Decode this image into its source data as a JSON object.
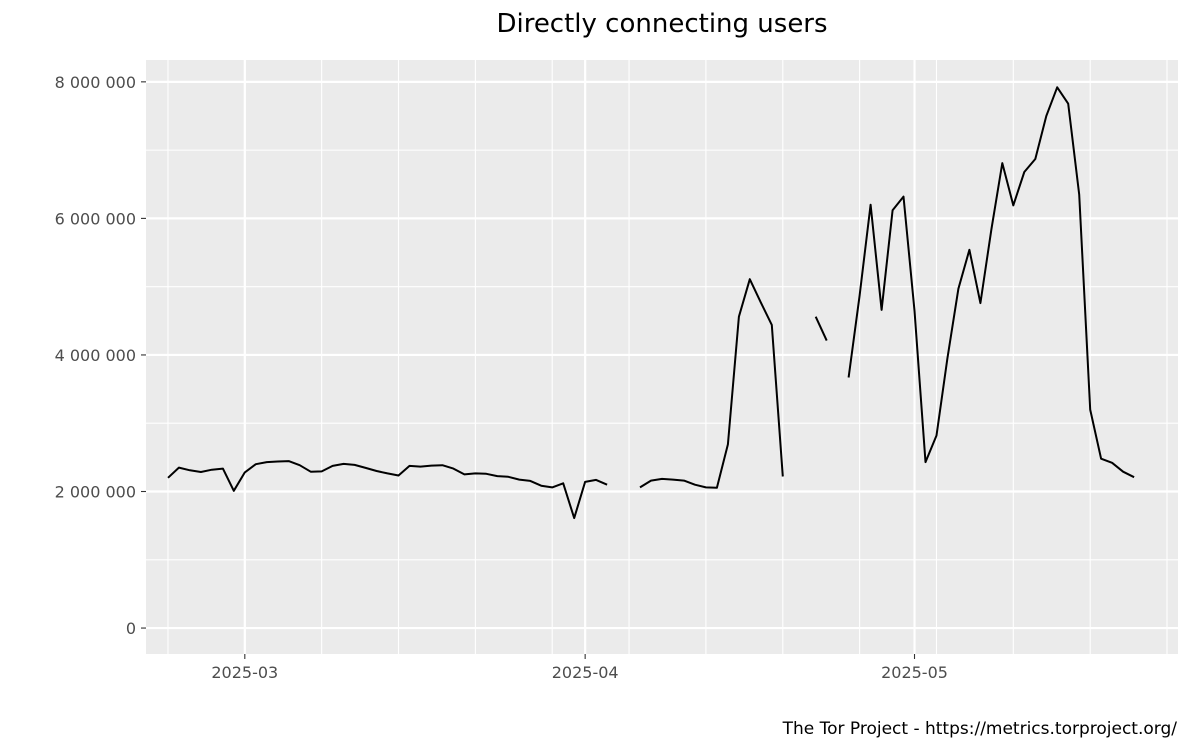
{
  "chart_data": {
    "type": "line",
    "title": "Directly connecting users",
    "caption": "The Tor Project - https://metrics.torproject.org/",
    "xlabel": "",
    "ylabel": "",
    "x_tick_labels": [
      "2025-03",
      "2025-04",
      "2025-05"
    ],
    "x_tick_dates": [
      "2025-03-01",
      "2025-04-01",
      "2025-05-01"
    ],
    "y_tick_labels": [
      "0",
      "2 000 000",
      "4 000 000",
      "6 000 000",
      "8 000 000"
    ],
    "y_tick_values": [
      0,
      2000000,
      4000000,
      6000000,
      8000000
    ],
    "xlim": [
      "2025-02-20",
      "2025-05-25"
    ],
    "ylim": [
      -380000,
      8320000
    ],
    "grid": true,
    "colors": {
      "panel": "#ebebeb",
      "grid": "#ffffff",
      "line": "#000000",
      "tick": "#4d4d4d"
    },
    "series": [
      {
        "x": [
          "2025-02-22",
          "2025-02-23",
          "2025-02-24",
          "2025-02-25",
          "2025-02-26",
          "2025-02-27",
          "2025-02-28",
          "2025-03-01",
          "2025-03-02",
          "2025-03-03",
          "2025-03-04",
          "2025-03-05",
          "2025-03-06",
          "2025-03-07",
          "2025-03-08",
          "2025-03-09",
          "2025-03-10",
          "2025-03-11",
          "2025-03-12",
          "2025-03-13",
          "2025-03-14",
          "2025-03-15",
          "2025-03-16",
          "2025-03-17",
          "2025-03-18",
          "2025-03-19",
          "2025-03-20",
          "2025-03-21",
          "2025-03-22",
          "2025-03-23",
          "2025-03-24",
          "2025-03-25",
          "2025-03-26",
          "2025-03-27",
          "2025-03-28",
          "2025-03-29",
          "2025-03-30",
          "2025-03-31",
          "2025-04-01",
          "2025-04-02",
          "2025-04-03",
          "2025-04-04",
          "2025-04-05",
          "2025-04-06",
          "2025-04-07",
          "2025-04-08",
          "2025-04-09",
          "2025-04-10",
          "2025-04-11",
          "2025-04-12",
          "2025-04-13",
          "2025-04-14",
          "2025-04-15",
          "2025-04-16",
          "2025-04-17",
          "2025-04-18",
          "2025-04-19",
          "2025-04-20",
          "2025-04-21",
          "2025-04-22",
          "2025-04-23",
          "2025-04-24",
          "2025-04-25",
          "2025-04-26",
          "2025-04-27",
          "2025-04-28",
          "2025-04-29",
          "2025-04-30",
          "2025-05-01",
          "2025-05-02",
          "2025-05-03",
          "2025-05-04",
          "2025-05-05",
          "2025-05-06",
          "2025-05-07",
          "2025-05-08",
          "2025-05-09",
          "2025-05-10",
          "2025-05-11",
          "2025-05-12",
          "2025-05-13",
          "2025-05-14",
          "2025-05-15",
          "2025-05-16",
          "2025-05-17",
          "2025-05-18",
          "2025-05-19",
          "2025-05-20",
          "2025-05-21"
        ],
        "values": [
          2200000,
          2350000,
          2310000,
          2285000,
          2320000,
          2335000,
          2010000,
          2280000,
          2400000,
          2430000,
          2440000,
          2445000,
          2385000,
          2290000,
          2295000,
          2375000,
          2405000,
          2390000,
          2345000,
          2300000,
          2265000,
          2235000,
          2375000,
          2365000,
          2380000,
          2385000,
          2335000,
          2250000,
          2265000,
          2260000,
          2225000,
          2215000,
          2175000,
          2155000,
          2085000,
          2060000,
          2120000,
          1610000,
          2140000,
          2170000,
          2100000,
          null,
          null,
          2060000,
          2160000,
          2185000,
          2175000,
          2160000,
          2100000,
          2060000,
          2055000,
          2690000,
          4560000,
          5110000,
          4770000,
          4440000,
          2220000,
          null,
          null,
          4560000,
          4210000,
          null,
          3670000,
          4870000,
          6200000,
          4660000,
          6120000,
          6320000,
          4650000,
          2430000,
          2820000,
          3950000,
          4970000,
          5540000,
          4760000,
          5840000,
          6810000,
          6190000,
          6680000,
          6870000,
          7500000,
          7920000,
          7680000,
          6350000,
          3200000,
          2480000,
          2420000,
          2290000,
          2210000
        ]
      }
    ]
  }
}
